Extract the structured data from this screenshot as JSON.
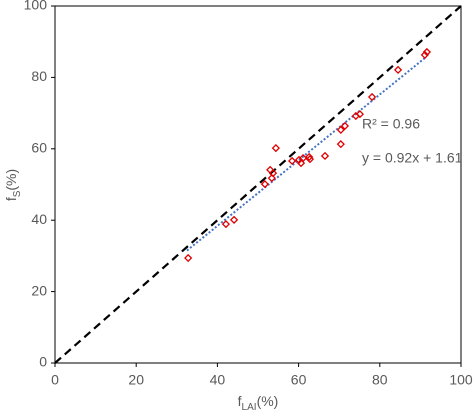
{
  "chart_data": {
    "type": "scatter",
    "x_label": {
      "main": "f",
      "sub": "LAI",
      "suffix": "(%)"
    },
    "y_label": {
      "main": "f",
      "sub": "S",
      "suffix": "(%)"
    },
    "xlim": [
      0,
      100
    ],
    "ylim": [
      0,
      100
    ],
    "xticks": [
      0,
      20,
      40,
      60,
      80,
      100
    ],
    "yticks": [
      0,
      20,
      40,
      60,
      80,
      100
    ],
    "series": [
      {
        "color": "#e00000",
        "x": [
          32.8,
          42.1,
          44.1,
          51.7,
          53.0,
          53.4,
          53.7,
          54.4,
          58.4,
          60.1,
          60.6,
          61.1,
          62.6,
          62.8,
          66.5,
          70.4,
          70.4,
          71.4,
          74.1,
          75.1,
          78.1,
          84.5,
          91.1,
          91.6
        ],
        "values": [
          29.4,
          38.9,
          40.1,
          50.1,
          54.1,
          51.8,
          53.2,
          60.2,
          56.6,
          56.9,
          56.0,
          57.4,
          57.7,
          57.1,
          58.0,
          61.3,
          65.3,
          66.4,
          69.2,
          69.7,
          74.5,
          82.1,
          86.3,
          87.1
        ]
      }
    ],
    "lines": [
      {
        "style": "dashed",
        "color": "#000000",
        "x": [
          0,
          100
        ],
        "values": [
          0,
          100
        ]
      },
      {
        "style": "dotted",
        "color": "#4472c4",
        "x": [
          32.5,
          91.5
        ],
        "values": [
          31.5,
          85.8
        ]
      }
    ],
    "annotations": [
      "R² = 0.96",
      "y = 0.92x + 1.61"
    ]
  }
}
